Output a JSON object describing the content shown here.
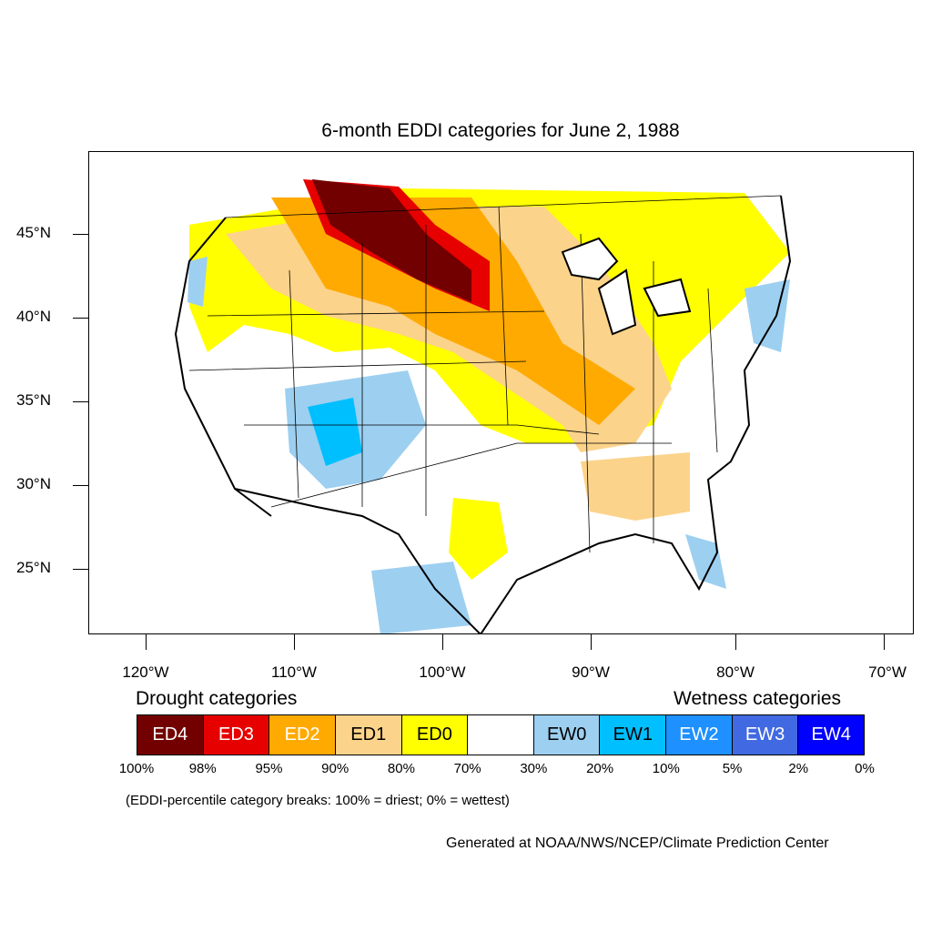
{
  "title": "6-month EDDI categories for June 2, 1988",
  "lat_labels": [
    "45°N",
    "40°N",
    "35°N",
    "30°N",
    "25°N"
  ],
  "lon_labels": [
    "120°W",
    "110°W",
    "100°W",
    "90°W",
    "80°W",
    "70°W"
  ],
  "legend": {
    "drought_heading": "Drought categories",
    "wetness_heading": "Wetness categories",
    "categories": [
      {
        "label": "ED4",
        "color": "#730000",
        "text_color": "#ffffff"
      },
      {
        "label": "ED3",
        "color": "#e60000",
        "text_color": "#ffffff"
      },
      {
        "label": "ED2",
        "color": "#ffaa00",
        "text_color": "#ffffff"
      },
      {
        "label": "ED1",
        "color": "#fcd38a",
        "text_color": "#000000"
      },
      {
        "label": "ED0",
        "color": "#ffff00",
        "text_color": "#000000"
      },
      {
        "label": "",
        "color": "#ffffff",
        "text_color": "#000000"
      },
      {
        "label": "EW0",
        "color": "#9dcff0",
        "text_color": "#000000"
      },
      {
        "label": "EW1",
        "color": "#00bfff",
        "text_color": "#000000"
      },
      {
        "label": "EW2",
        "color": "#1e90ff",
        "text_color": "#ffffff"
      },
      {
        "label": "EW3",
        "color": "#4169e1",
        "text_color": "#ffffff"
      },
      {
        "label": "EW4",
        "color": "#0000ff",
        "text_color": "#ffffff"
      }
    ],
    "breaks": [
      "100%",
      "98%",
      "95%",
      "90%",
      "80%",
      "70%",
      "30%",
      "20%",
      "10%",
      "5%",
      "2%",
      "0%"
    ]
  },
  "note": "(EDDI-percentile category breaks: 100% = driest; 0% = wettest)",
  "credit": "Generated at NOAA/NWS/NCEP/Climate Prediction Center"
}
